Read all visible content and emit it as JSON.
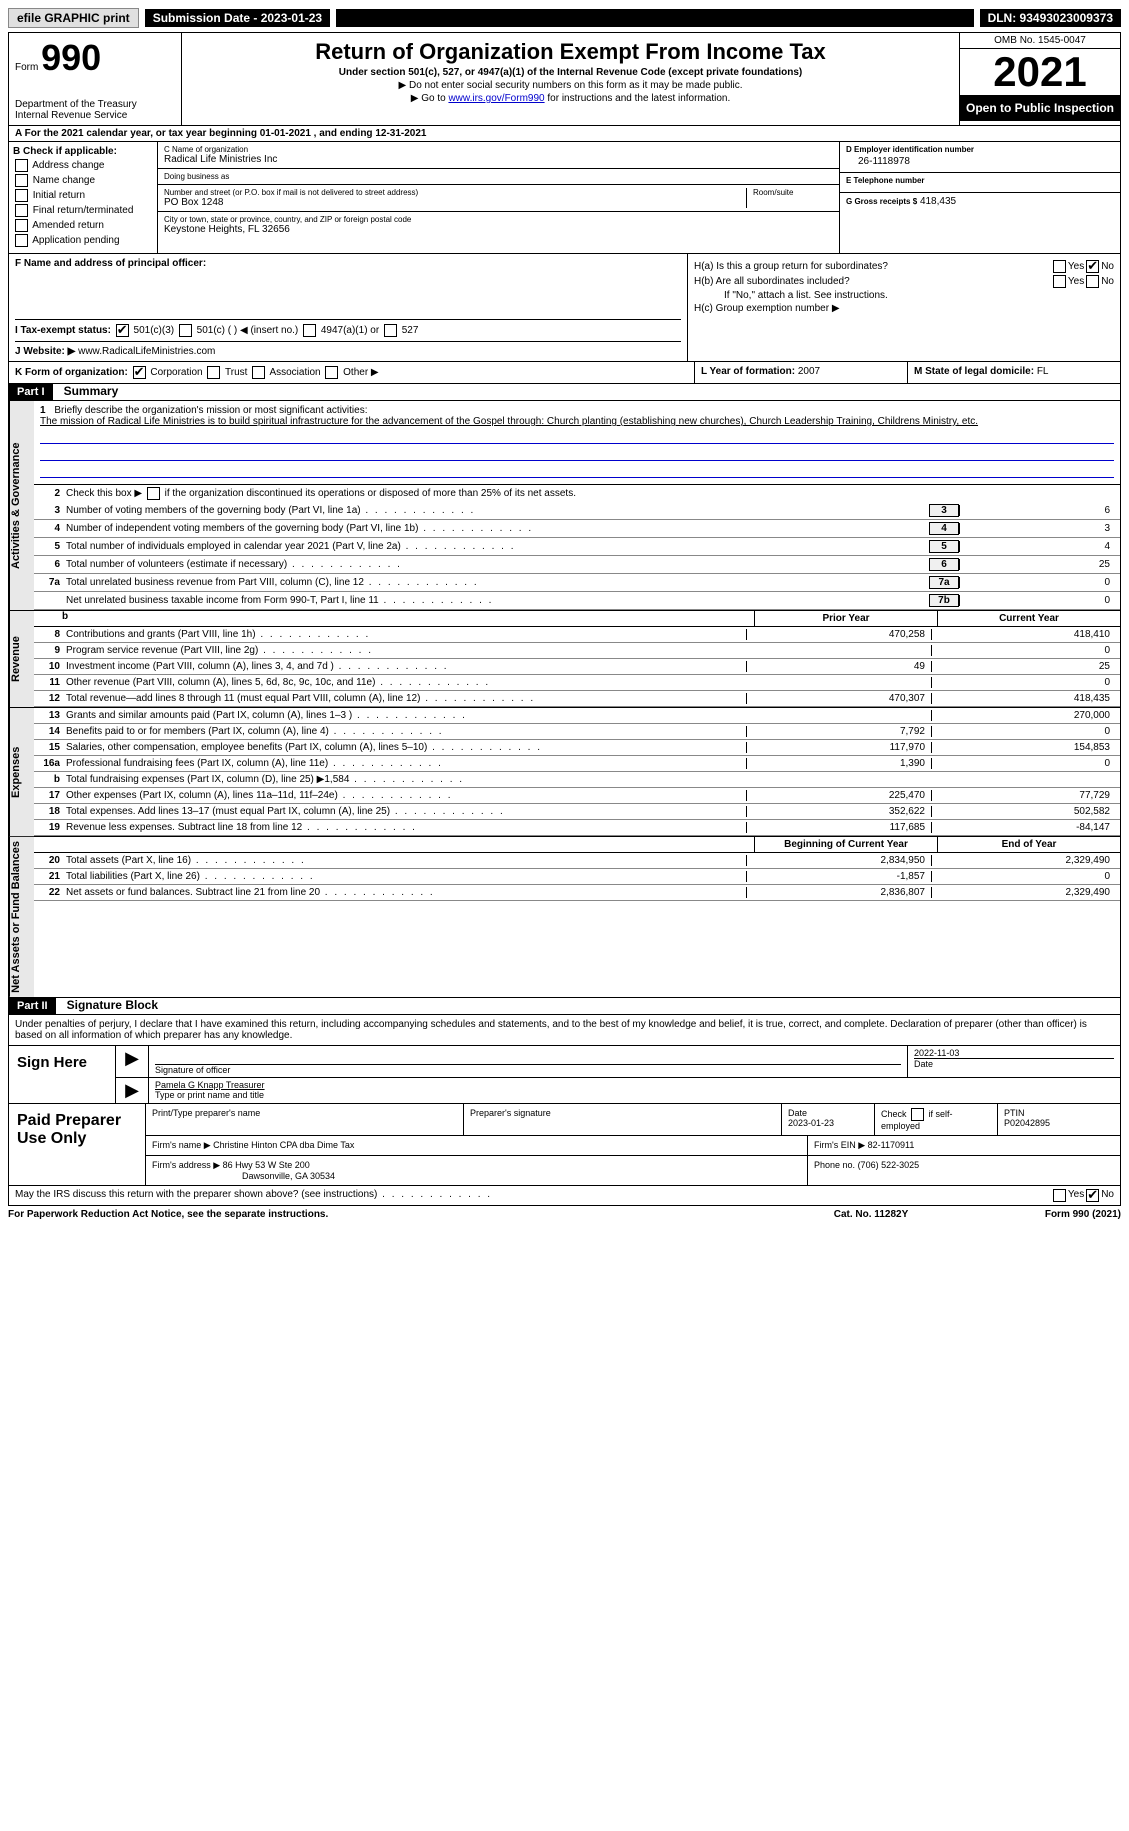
{
  "topbar": {
    "efile_label": "efile GRAPHIC print",
    "submission_label": "Submission Date - 2023-01-23",
    "dln_label": "DLN: 93493023009373"
  },
  "header": {
    "form_label": "Form",
    "form_number": "990",
    "dept": "Department of the Treasury",
    "irs": "Internal Revenue Service",
    "title": "Return of Organization Exempt From Income Tax",
    "subtitle": "Under section 501(c), 527, or 4947(a)(1) of the Internal Revenue Code (except private foundations)",
    "instr1": "▶ Do not enter social security numbers on this form as it may be made public.",
    "instr2_pre": "▶ Go to ",
    "instr2_link": "www.irs.gov/Form990",
    "instr2_post": " for instructions and the latest information.",
    "omb": "OMB No. 1545-0047",
    "year": "2021",
    "open_public": "Open to Public Inspection"
  },
  "row_a": "A For the 2021 calendar year, or tax year beginning 01-01-2021    , and ending 12-31-2021",
  "section_b": {
    "header": "B Check if applicable:",
    "items": [
      "Address change",
      "Name change",
      "Initial return",
      "Final return/terminated",
      "Amended return",
      "Application pending"
    ]
  },
  "section_c": {
    "name_label": "C Name of organization",
    "name": "Radical Life Ministries Inc",
    "dba_label": "Doing business as",
    "dba": "",
    "street_label": "Number and street (or P.O. box if mail is not delivered to street address)",
    "street": "PO Box 1248",
    "room_label": "Room/suite",
    "city_label": "City or town, state or province, country, and ZIP or foreign postal code",
    "city": "Keystone Heights, FL  32656"
  },
  "section_d": {
    "ein_label": "D Employer identification number",
    "ein": "26-1118978",
    "phone_label": "E Telephone number",
    "phone": "",
    "gross_label": "G Gross receipts $",
    "gross": "418,435"
  },
  "section_f": {
    "label": "F  Name and address of principal officer:",
    "value": ""
  },
  "section_h": {
    "ha_label": "H(a)  Is this a group return for subordinates?",
    "ha_yes": "Yes",
    "ha_no": "No",
    "hb_label": "H(b)  Are all subordinates included?",
    "hb_note": "If \"No,\" attach a list. See instructions.",
    "hc_label": "H(c)  Group exemption number ▶"
  },
  "row_i": {
    "label": "I   Tax-exempt status:",
    "opt1": "501(c)(3)",
    "opt2": "501(c) (   ) ◀ (insert no.)",
    "opt3": "4947(a)(1) or",
    "opt4": "527"
  },
  "row_j": {
    "label": "J   Website: ▶",
    "value": "www.RadicalLifeMinistries.com"
  },
  "row_k": {
    "label": "K Form of organization:",
    "opts": [
      "Corporation",
      "Trust",
      "Association",
      "Other ▶"
    ],
    "l_label": "L Year of formation:",
    "l_value": "2007",
    "m_label": "M State of legal domicile:",
    "m_value": "FL"
  },
  "part1": {
    "header": "Part I",
    "title": "Summary"
  },
  "summary": {
    "line1_label": "Briefly describe the organization's mission or most significant activities:",
    "mission": "The mission of Radical Life Ministries is to build spiritual infrastructure for the advancement of the Gospel through: Church planting (establishing new churches), Church Leadership Training, Childrens Ministry, etc.",
    "line2": "Check this box ▶         if the organization discontinued its operations or disposed of more than 25% of its net assets.",
    "lines_gov": [
      {
        "num": "3",
        "desc": "Number of voting members of the governing body (Part VI, line 1a)",
        "box": "3",
        "val": "6"
      },
      {
        "num": "4",
        "desc": "Number of independent voting members of the governing body (Part VI, line 1b)",
        "box": "4",
        "val": "3"
      },
      {
        "num": "5",
        "desc": "Total number of individuals employed in calendar year 2021 (Part V, line 2a)",
        "box": "5",
        "val": "4"
      },
      {
        "num": "6",
        "desc": "Total number of volunteers (estimate if necessary)",
        "box": "6",
        "val": "25"
      },
      {
        "num": "7a",
        "desc": "Total unrelated business revenue from Part VIII, column (C), line 12",
        "box": "7a",
        "val": "0"
      },
      {
        "num": "",
        "desc": "Net unrelated business taxable income from Form 990-T, Part I, line 11",
        "box": "7b",
        "val": "0"
      }
    ],
    "col_prior": "Prior Year",
    "col_current": "Current Year",
    "lines_rev": [
      {
        "num": "8",
        "desc": "Contributions and grants (Part VIII, line 1h)",
        "prior": "470,258",
        "current": "418,410"
      },
      {
        "num": "9",
        "desc": "Program service revenue (Part VIII, line 2g)",
        "prior": "",
        "current": "0"
      },
      {
        "num": "10",
        "desc": "Investment income (Part VIII, column (A), lines 3, 4, and 7d )",
        "prior": "49",
        "current": "25"
      },
      {
        "num": "11",
        "desc": "Other revenue (Part VIII, column (A), lines 5, 6d, 8c, 9c, 10c, and 11e)",
        "prior": "",
        "current": "0"
      },
      {
        "num": "12",
        "desc": "Total revenue—add lines 8 through 11 (must equal Part VIII, column (A), line 12)",
        "prior": "470,307",
        "current": "418,435"
      }
    ],
    "lines_exp": [
      {
        "num": "13",
        "desc": "Grants and similar amounts paid (Part IX, column (A), lines 1–3 )",
        "prior": "",
        "current": "270,000"
      },
      {
        "num": "14",
        "desc": "Benefits paid to or for members (Part IX, column (A), line 4)",
        "prior": "7,792",
        "current": "0"
      },
      {
        "num": "15",
        "desc": "Salaries, other compensation, employee benefits (Part IX, column (A), lines 5–10)",
        "prior": "117,970",
        "current": "154,853"
      },
      {
        "num": "16a",
        "desc": "Professional fundraising fees (Part IX, column (A), line 11e)",
        "prior": "1,390",
        "current": "0"
      },
      {
        "num": "b",
        "desc": "Total fundraising expenses (Part IX, column (D), line 25) ▶1,584",
        "prior": "SHADED",
        "current": "SHADED"
      },
      {
        "num": "17",
        "desc": "Other expenses (Part IX, column (A), lines 11a–11d, 11f–24e)",
        "prior": "225,470",
        "current": "77,729"
      },
      {
        "num": "18",
        "desc": "Total expenses. Add lines 13–17 (must equal Part IX, column (A), line 25)",
        "prior": "352,622",
        "current": "502,582"
      },
      {
        "num": "19",
        "desc": "Revenue less expenses. Subtract line 18 from line 12",
        "prior": "117,685",
        "current": "-84,147"
      }
    ],
    "col_begin": "Beginning of Current Year",
    "col_end": "End of Year",
    "lines_net": [
      {
        "num": "20",
        "desc": "Total assets (Part X, line 16)",
        "prior": "2,834,950",
        "current": "2,329,490"
      },
      {
        "num": "21",
        "desc": "Total liabilities (Part X, line 26)",
        "prior": "-1,857",
        "current": "0"
      },
      {
        "num": "22",
        "desc": "Net assets or fund balances. Subtract line 21 from line 20",
        "prior": "2,836,807",
        "current": "2,329,490"
      }
    ],
    "side_gov": "Activities & Governance",
    "side_rev": "Revenue",
    "side_exp": "Expenses",
    "side_net": "Net Assets or Fund Balances"
  },
  "part2": {
    "header": "Part II",
    "title": "Signature Block",
    "declaration": "Under penalties of perjury, I declare that I have examined this return, including accompanying schedules and statements, and to the best of my knowledge and belief, it is true, correct, and complete. Declaration of preparer (other than officer) is based on all information of which preparer has any knowledge."
  },
  "sign": {
    "label": "Sign Here",
    "sig_label": "Signature of officer",
    "date": "2022-11-03",
    "date_label": "Date",
    "name": "Pamela G Knapp  Treasurer",
    "name_label": "Type or print name and title"
  },
  "preparer": {
    "label": "Paid Preparer Use Only",
    "print_label": "Print/Type preparer's name",
    "print_name": "",
    "sig_label": "Preparer's signature",
    "date_label": "Date",
    "date": "2023-01-23",
    "check_label": "Check         if self-employed",
    "ptin_label": "PTIN",
    "ptin": "P02042895",
    "firm_name_label": "Firm's name      ▶",
    "firm_name": "Christine Hinton CPA dba Dime Tax",
    "firm_ein_label": "Firm's EIN ▶",
    "firm_ein": "82-1170911",
    "firm_addr_label": "Firm's address ▶",
    "firm_addr1": "86 Hwy 53 W Ste 200",
    "firm_addr2": "Dawsonville, GA  30534",
    "phone_label": "Phone no.",
    "phone": "(706) 522-3025"
  },
  "footer": {
    "discuss": "May the IRS discuss this return with the preparer shown above? (see instructions)",
    "yes": "Yes",
    "no": "No",
    "paperwork": "For Paperwork Reduction Act Notice, see the separate instructions.",
    "cat": "Cat. No. 11282Y",
    "form": "Form 990 (2021)"
  }
}
